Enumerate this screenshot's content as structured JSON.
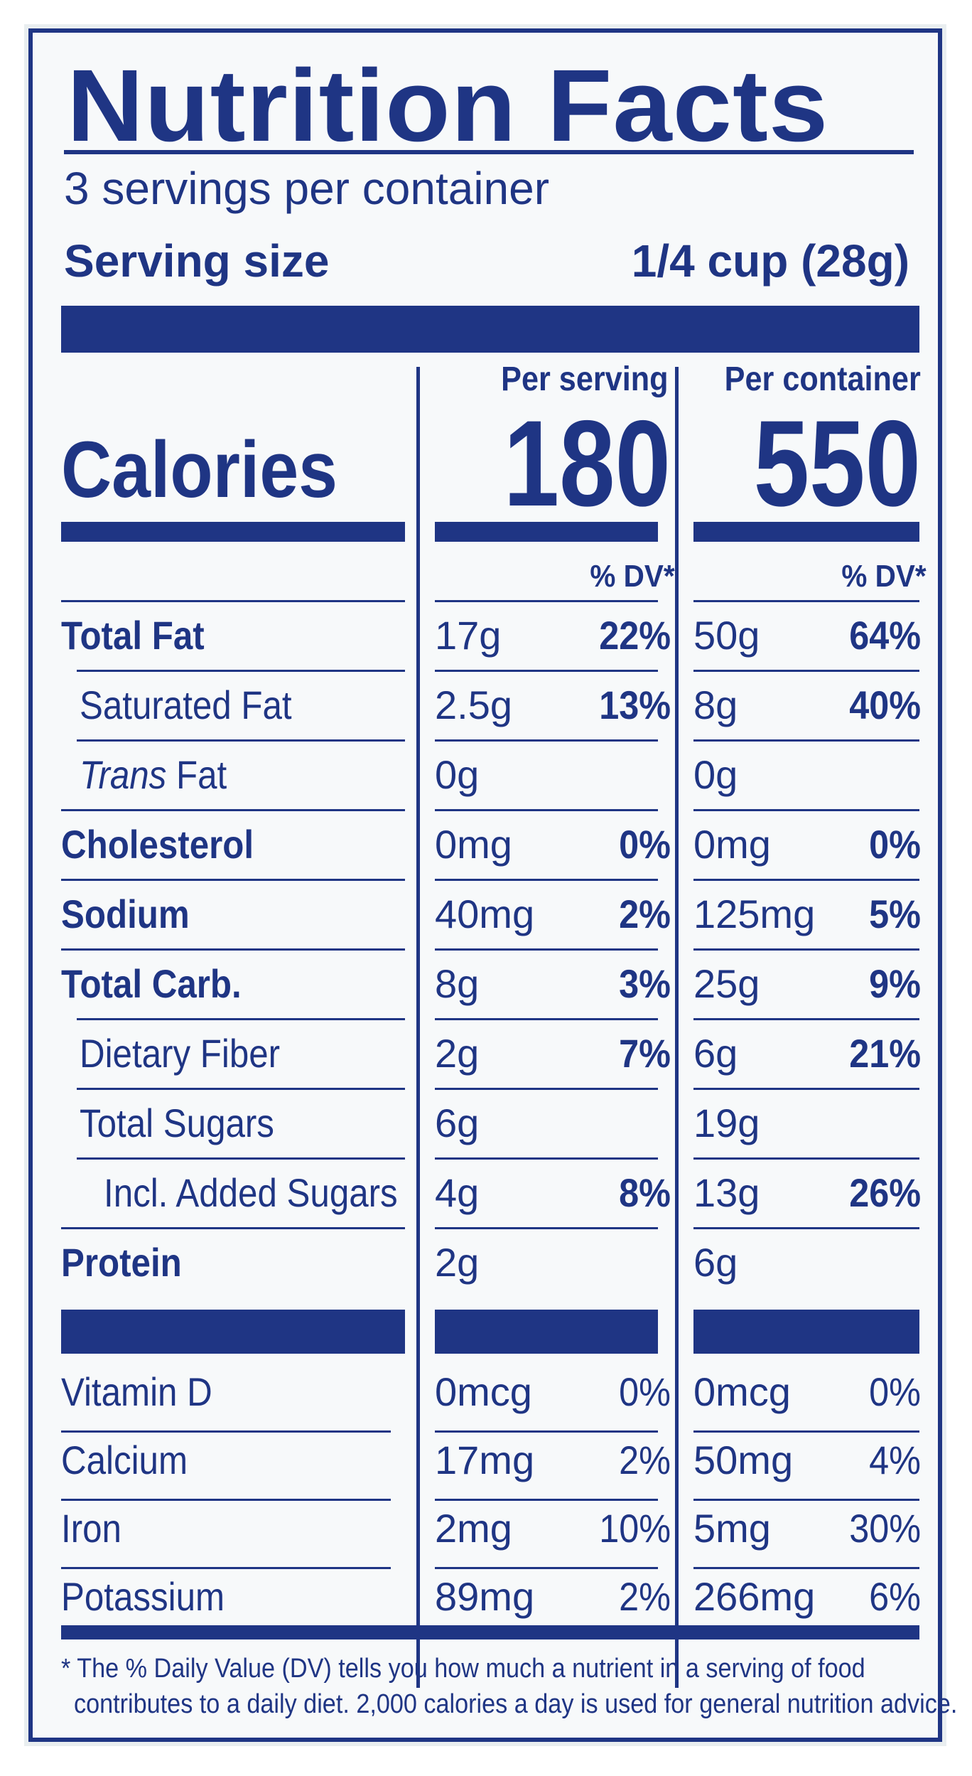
{
  "title": "Nutrition Facts",
  "servings_per_container": "3 servings per container",
  "serving_size_label": "Serving size",
  "serving_size_value": "1/4 cup (28g)",
  "calories_label": "Calories",
  "per_serving_label": "Per serving",
  "per_container_label": "Per container",
  "calories_serving": "180",
  "calories_container": "550",
  "dv_header": "% DV*",
  "rows": [
    {
      "name": "Total Fat",
      "bold": true,
      "indent": 0,
      "s_amt": "17g",
      "s_dv": "22%",
      "c_amt": "50g",
      "c_dv": "64%"
    },
    {
      "name": "Saturated Fat",
      "bold": false,
      "indent": 1,
      "s_amt": "2.5g",
      "s_dv": "13%",
      "c_amt": "8g",
      "c_dv": "40%"
    },
    {
      "name_italic": "Trans",
      "name_rest": " Fat",
      "bold": false,
      "indent": 1,
      "s_amt": "0g",
      "s_dv": "",
      "c_amt": "0g",
      "c_dv": ""
    },
    {
      "name": "Cholesterol",
      "bold": true,
      "indent": 0,
      "s_amt": "0mg",
      "s_dv": "0%",
      "c_amt": "0mg",
      "c_dv": "0%"
    },
    {
      "name": "Sodium",
      "bold": true,
      "indent": 0,
      "s_amt": "40mg",
      "s_dv": "2%",
      "c_amt": "125mg",
      "c_dv": "5%"
    },
    {
      "name": "Total Carb.",
      "bold": true,
      "indent": 0,
      "s_amt": "8g",
      "s_dv": "3%",
      "c_amt": "25g",
      "c_dv": "9%"
    },
    {
      "name": "Dietary Fiber",
      "bold": false,
      "indent": 1,
      "s_amt": "2g",
      "s_dv": "7%",
      "c_amt": "6g",
      "c_dv": "21%"
    },
    {
      "name": "Total Sugars",
      "bold": false,
      "indent": 1,
      "s_amt": "6g",
      "s_dv": "",
      "c_amt": "19g",
      "c_dv": ""
    },
    {
      "name": "Incl. Added Sugars",
      "bold": false,
      "indent": 2,
      "s_amt": "4g",
      "s_dv": "8%",
      "c_amt": "13g",
      "c_dv": "26%"
    },
    {
      "name": "Protein",
      "bold": true,
      "indent": 0,
      "s_amt": "2g",
      "s_dv": "",
      "c_amt": "6g",
      "c_dv": ""
    }
  ],
  "vitamins": [
    {
      "name": "Vitamin D",
      "s_amt": "0mcg",
      "s_dv": "0%",
      "c_amt": "0mcg",
      "c_dv": "0%"
    },
    {
      "name": "Calcium",
      "s_amt": "17mg",
      "s_dv": "2%",
      "c_amt": "50mg",
      "c_dv": "4%"
    },
    {
      "name": "Iron",
      "s_amt": "2mg",
      "s_dv": "10%",
      "c_amt": "5mg",
      "c_dv": "30%"
    },
    {
      "name": "Potassium",
      "s_amt": "89mg",
      "s_dv": "2%",
      "c_amt": "266mg",
      "c_dv": "6%"
    }
  ],
  "footnote_line1": "* The % Daily Value (DV) tells you how much a nutrient in a serving of food",
  "footnote_line2": "contributes to a daily diet. 2,000 calories a day is used for general nutrition advice.",
  "colors": {
    "ink": "#1f3584",
    "background": "#f7f9fa"
  }
}
